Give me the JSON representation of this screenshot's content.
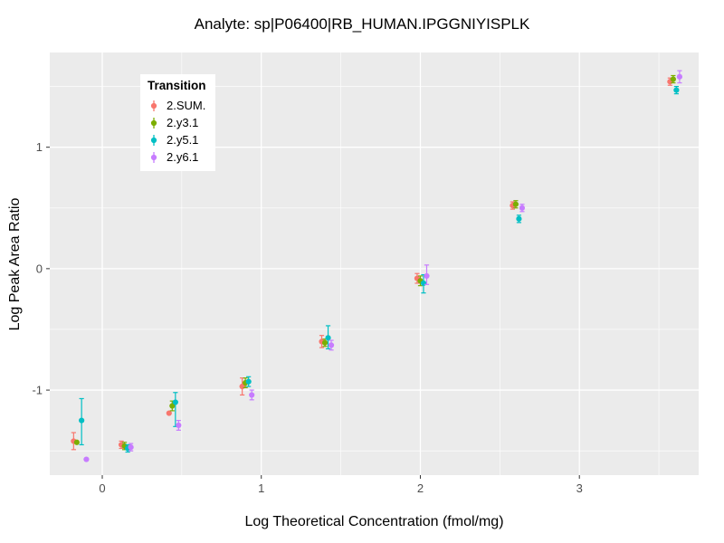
{
  "chart_data": {
    "type": "scatter",
    "error_bars": true,
    "title": "Analyte: sp|P06400|RB_HUMAN.IPGGNIYISPLK",
    "xlabel": "Log Theoretical Concentration (fmol/mg)",
    "ylabel": "Log Peak Area Ratio",
    "legend_title": "Transition",
    "legend_position": "top-left-inside",
    "grid": true,
    "panel_bg": "#EBEBEB",
    "grid_major_color": "#FFFFFF",
    "grid_minor_color": "#FFFFFF",
    "tick_label_color": "#4D4D4D",
    "xlim": [
      -0.33,
      3.75
    ],
    "ylim": [
      -1.7,
      1.78
    ],
    "x_ticks": [
      0,
      1,
      2,
      3
    ],
    "y_ticks": [
      -1,
      0,
      1
    ],
    "x_minor": [
      0.5,
      1.5,
      2.5,
      3.5
    ],
    "y_minor": [
      -1.5,
      -0.5,
      0.5,
      1.5
    ],
    "series": [
      {
        "name": "2.SUM.",
        "color": "#F8766D",
        "points": [
          {
            "x": -0.18,
            "y": -1.42,
            "ymin": -1.49,
            "ymax": -1.35
          },
          {
            "x": 0.12,
            "y": -1.45,
            "ymin": -1.48,
            "ymax": -1.42
          },
          {
            "x": 0.42,
            "y": -1.19,
            "ymin": null,
            "ymax": null
          },
          {
            "x": 0.88,
            "y": -0.97,
            "ymin": -1.04,
            "ymax": -0.9
          },
          {
            "x": 1.38,
            "y": -0.6,
            "ymin": -0.65,
            "ymax": -0.55
          },
          {
            "x": 1.98,
            "y": -0.08,
            "ymin": -0.12,
            "ymax": -0.04
          },
          {
            "x": 2.58,
            "y": 0.52,
            "ymin": 0.49,
            "ymax": 0.55
          },
          {
            "x": 3.57,
            "y": 1.54,
            "ymin": 1.51,
            "ymax": 1.57
          }
        ]
      },
      {
        "name": "2.y3.1",
        "color": "#7CAE00",
        "points": [
          {
            "x": -0.16,
            "y": -1.43,
            "ymin": null,
            "ymax": null
          },
          {
            "x": 0.14,
            "y": -1.46,
            "ymin": -1.49,
            "ymax": -1.43
          },
          {
            "x": 0.44,
            "y": -1.13,
            "ymin": -1.17,
            "ymax": -1.09
          },
          {
            "x": 0.9,
            "y": -0.94,
            "ymin": -0.98,
            "ymax": -0.9
          },
          {
            "x": 1.4,
            "y": -0.61,
            "ymin": -0.64,
            "ymax": -0.58
          },
          {
            "x": 2.0,
            "y": -0.1,
            "ymin": -0.14,
            "ymax": -0.06
          },
          {
            "x": 2.6,
            "y": 0.53,
            "ymin": 0.5,
            "ymax": 0.56
          },
          {
            "x": 3.59,
            "y": 1.56,
            "ymin": 1.53,
            "ymax": 1.59
          }
        ]
      },
      {
        "name": "2.y5.1",
        "color": "#00BFC4",
        "points": [
          {
            "x": -0.13,
            "y": -1.25,
            "ymin": -1.45,
            "ymax": -1.07
          },
          {
            "x": 0.16,
            "y": -1.48,
            "ymin": -1.51,
            "ymax": -1.45
          },
          {
            "x": 0.46,
            "y": -1.1,
            "ymin": -1.3,
            "ymax": -1.02
          },
          {
            "x": 0.92,
            "y": -0.93,
            "ymin": -0.97,
            "ymax": -0.89
          },
          {
            "x": 1.42,
            "y": -0.57,
            "ymin": -0.66,
            "ymax": -0.47
          },
          {
            "x": 2.02,
            "y": -0.12,
            "ymin": -0.2,
            "ymax": -0.05
          },
          {
            "x": 2.62,
            "y": 0.41,
            "ymin": 0.38,
            "ymax": 0.44
          },
          {
            "x": 3.61,
            "y": 1.47,
            "ymin": 1.44,
            "ymax": 1.5
          }
        ]
      },
      {
        "name": "2.y6.1",
        "color": "#C77CFF",
        "points": [
          {
            "x": -0.1,
            "y": -1.57,
            "ymin": null,
            "ymax": null
          },
          {
            "x": 0.18,
            "y": -1.47,
            "ymin": -1.5,
            "ymax": -1.44
          },
          {
            "x": 0.48,
            "y": -1.29,
            "ymin": -1.33,
            "ymax": -1.25
          },
          {
            "x": 0.94,
            "y": -1.04,
            "ymin": -1.08,
            "ymax": -1.0
          },
          {
            "x": 1.44,
            "y": -0.63,
            "ymin": -0.67,
            "ymax": -0.59
          },
          {
            "x": 2.04,
            "y": -0.06,
            "ymin": -0.13,
            "ymax": 0.03
          },
          {
            "x": 2.64,
            "y": 0.5,
            "ymin": 0.47,
            "ymax": 0.53
          },
          {
            "x": 3.63,
            "y": 1.58,
            "ymin": 1.53,
            "ymax": 1.63
          }
        ]
      }
    ]
  }
}
